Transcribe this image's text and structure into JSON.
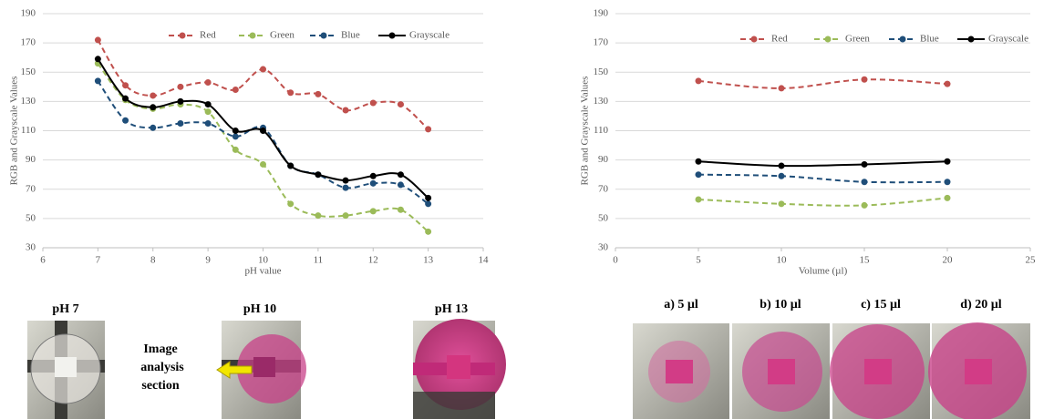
{
  "chart_data": [
    {
      "type": "line",
      "xlabel": "pH value",
      "ylabel": "RGB and Grayscale Values",
      "x": [
        7,
        7.5,
        8,
        8.5,
        9,
        9.5,
        10,
        10.5,
        11,
        11.5,
        12,
        12.5,
        13
      ],
      "xlim": [
        6,
        14
      ],
      "xticks": [
        6,
        7,
        8,
        9,
        10,
        11,
        12,
        13,
        14
      ],
      "ylim": [
        30,
        190
      ],
      "yticks": [
        30,
        50,
        70,
        90,
        110,
        130,
        150,
        170,
        190
      ],
      "grid": true,
      "legend": "top",
      "smooth": true,
      "series": [
        {
          "name": "Red",
          "color": "#c0504d",
          "line_style": "dashed",
          "values": [
            172,
            141,
            134,
            140,
            143,
            138,
            152,
            136,
            135,
            124,
            129,
            128,
            111
          ]
        },
        {
          "name": "Green",
          "color": "#9bbb59",
          "line_style": "dashed",
          "values": [
            156,
            131,
            125,
            128,
            123,
            97,
            87,
            60,
            52,
            52,
            55,
            56,
            41
          ]
        },
        {
          "name": "Blue",
          "color": "#1f4e79",
          "line_style": "dashed",
          "values": [
            144,
            117,
            112,
            115,
            115,
            106,
            112,
            86,
            80,
            71,
            74,
            73,
            60
          ]
        },
        {
          "name": "Grayscale",
          "color": "#000000",
          "line_style": "solid",
          "values": [
            159,
            132,
            126,
            130,
            128,
            110,
            110,
            86,
            80,
            76,
            79,
            80,
            64
          ]
        }
      ]
    },
    {
      "type": "line",
      "xlabel": "Volume (µl)",
      "ylabel": "RGB and Grayscale Values",
      "x": [
        5,
        10,
        15,
        20
      ],
      "xlim": [
        0,
        25
      ],
      "xticks": [
        0,
        5,
        10,
        15,
        20,
        25
      ],
      "ylim": [
        30,
        190
      ],
      "yticks": [
        30,
        50,
        70,
        90,
        110,
        130,
        150,
        170,
        190
      ],
      "grid": true,
      "legend": "top",
      "smooth": true,
      "series": [
        {
          "name": "Red",
          "color": "#c0504d",
          "line_style": "dashed",
          "values": [
            144,
            139,
            145,
            142
          ]
        },
        {
          "name": "Green",
          "color": "#9bbb59",
          "line_style": "dashed",
          "values": [
            63,
            60,
            59,
            64
          ]
        },
        {
          "name": "Blue",
          "color": "#1f4e79",
          "line_style": "dashed",
          "values": [
            80,
            79,
            75,
            75
          ]
        },
        {
          "name": "Grayscale",
          "color": "#000000",
          "line_style": "solid",
          "values": [
            89,
            86,
            87,
            89
          ]
        }
      ]
    }
  ],
  "photos": {
    "ph_labels": [
      "pH 7",
      "pH 10",
      "pH 13"
    ],
    "annotation": [
      "Image",
      "analysis",
      "section"
    ],
    "volume_labels": [
      "a) 5 µl",
      "b) 10 µl",
      "c) 15 µl",
      "d) 20 µl"
    ]
  }
}
